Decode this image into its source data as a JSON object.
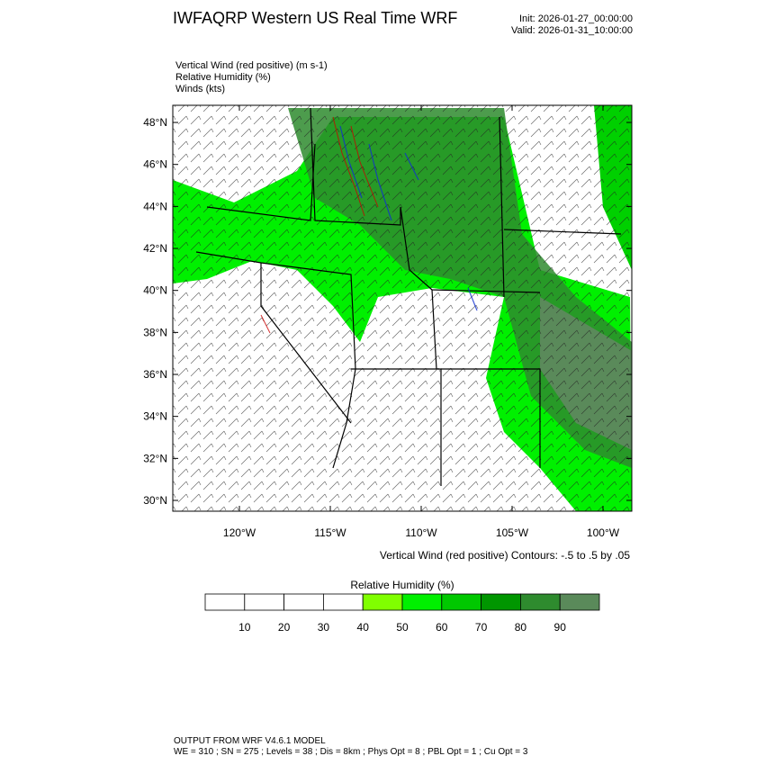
{
  "header": {
    "title": "IWFAQRP Western US Real Time WRF",
    "init": "Init: 2026-01-27_00:00:00",
    "valid": "Valid: 2026-01-31_10:00:00"
  },
  "fields": [
    "Vertical Wind (red positive)   (m s-1)",
    "Relative Humidity   (%)",
    "Winds   (kts)"
  ],
  "map": {
    "lat_ticks": [
      {
        "value": 30,
        "label": "30°N"
      },
      {
        "value": 32,
        "label": "32°N"
      },
      {
        "value": 34,
        "label": "34°N"
      },
      {
        "value": 36,
        "label": "36°N"
      },
      {
        "value": 38,
        "label": "38°N"
      },
      {
        "value": 40,
        "label": "40°N"
      },
      {
        "value": 42,
        "label": "42°N"
      },
      {
        "value": 44,
        "label": "44°N"
      },
      {
        "value": 46,
        "label": "46°N"
      },
      {
        "value": 48,
        "label": "48°N"
      }
    ],
    "lon_ticks": [
      {
        "value": -120,
        "label": "120°W"
      },
      {
        "value": -115,
        "label": "115°W"
      },
      {
        "value": -110,
        "label": "110°W"
      },
      {
        "value": -105,
        "label": "105°W"
      },
      {
        "value": -100,
        "label": "100°W"
      }
    ],
    "contour_note": "Vertical Wind (red positive) Contours: -.5 to .5 by .05"
  },
  "colorbar": {
    "title": "Relative Humidity  (%)",
    "levels": [
      10,
      20,
      30,
      40,
      50,
      60,
      70,
      80,
      90
    ],
    "colors": [
      "#ffffff",
      "#ffffff",
      "#ffffff",
      "#ffffff",
      "#80ff00",
      "#00f000",
      "#00c800",
      "#009600",
      "#2e8b2e",
      "#5a8a5a"
    ]
  },
  "footer": {
    "line1": "OUTPUT FROM WRF V4.6.1 MODEL",
    "line2": "WE = 310 ; SN = 275 ; Levels = 38 ; Dis = 8km ; Phys Opt = 8 ; PBL Opt = 1 ; Cu Opt = 3"
  }
}
